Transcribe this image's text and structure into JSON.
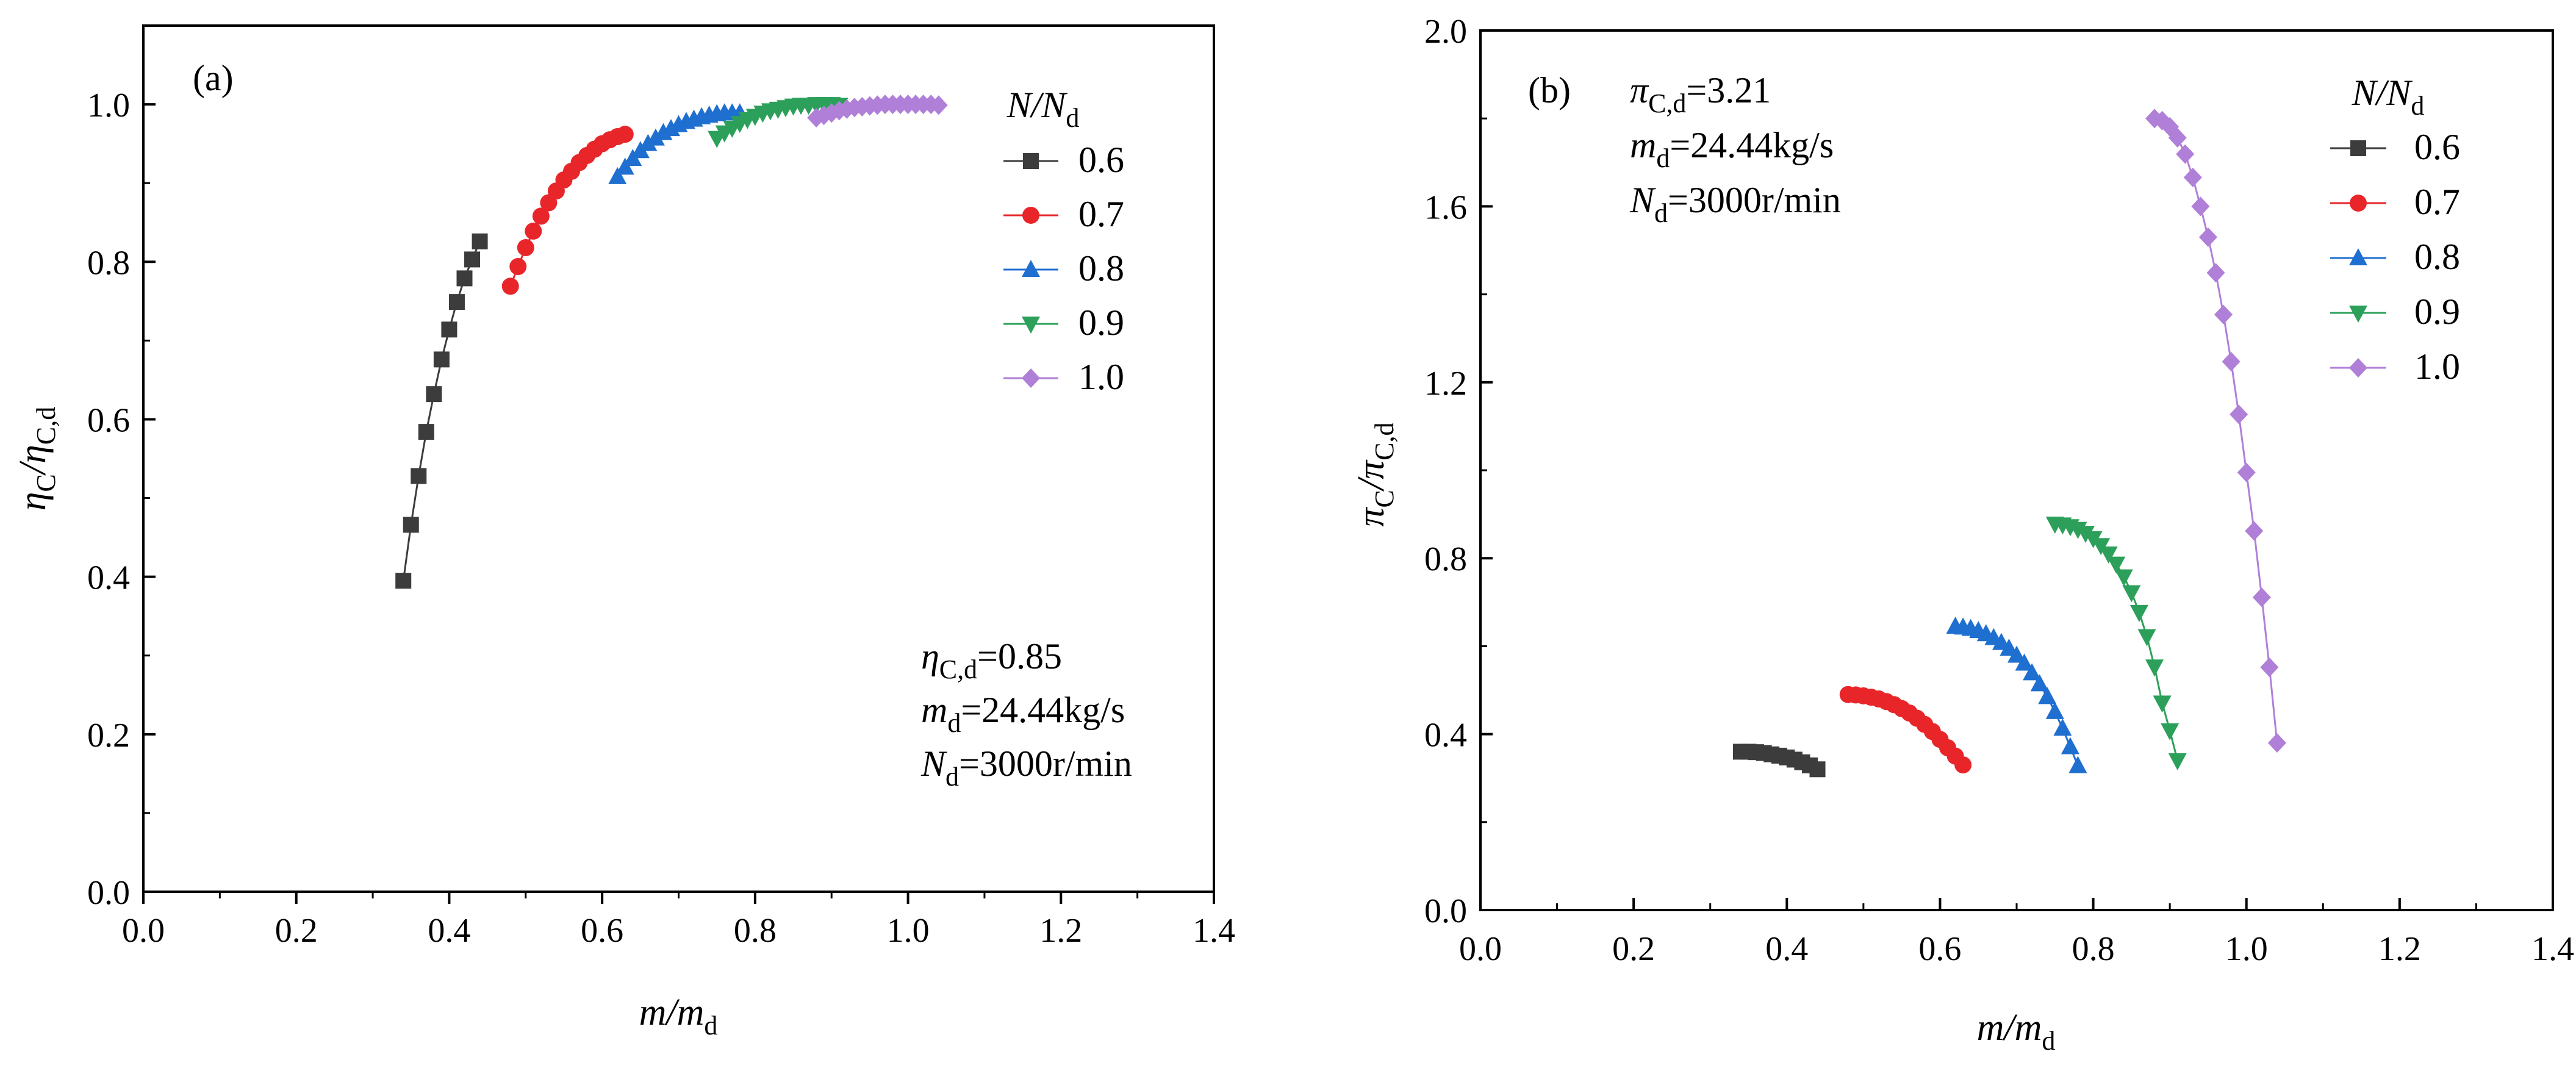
{
  "chart_data": [
    {
      "type": "line",
      "panel_label": "(a)",
      "xlabel": {
        "main": "m/m",
        "sub": "d"
      },
      "ylabel": {
        "main": "η",
        "sub1": "C",
        "mid": "/η",
        "sub2": "C,d"
      },
      "xlim": [
        0.0,
        1.4
      ],
      "ylim": [
        0.0,
        1.1
      ],
      "xticks": [
        "0.0",
        "0.2",
        "0.4",
        "0.6",
        "0.8",
        "1.0",
        "1.2",
        "1.4"
      ],
      "yticks": [
        "0.0",
        "0.2",
        "0.4",
        "0.6",
        "0.8",
        "1.0"
      ],
      "legend_title": {
        "main": "N/N",
        "sub": "d"
      },
      "annotations": [
        {
          "main": "η",
          "sub": "C,d",
          "rest": "=0.85"
        },
        {
          "main": "m",
          "sub": "d",
          "rest": "=24.44kg/s"
        },
        {
          "main": "N",
          "sub": "d",
          "rest": "=3000r/min"
        }
      ],
      "series": [
        {
          "name": "0.6",
          "color": "#3c3c3c",
          "marker": "square",
          "x": [
            0.34,
            0.35,
            0.36,
            0.37,
            0.38,
            0.39,
            0.4,
            0.41,
            0.42,
            0.43,
            0.44
          ],
          "y": [
            0.395,
            0.466,
            0.528,
            0.584,
            0.632,
            0.676,
            0.714,
            0.749,
            0.779,
            0.803,
            0.826
          ]
        },
        {
          "name": "0.7",
          "color": "#e8262a",
          "marker": "circle",
          "x": [
            0.48,
            0.49,
            0.5,
            0.51,
            0.52,
            0.53,
            0.54,
            0.55,
            0.56,
            0.57,
            0.58,
            0.59,
            0.6,
            0.61,
            0.62,
            0.63
          ],
          "y": [
            0.769,
            0.794,
            0.818,
            0.839,
            0.858,
            0.875,
            0.89,
            0.904,
            0.915,
            0.926,
            0.935,
            0.943,
            0.95,
            0.955,
            0.959,
            0.962
          ]
        },
        {
          "name": "0.8",
          "color": "#1f6fd0",
          "marker": "triangle-up",
          "x": [
            0.62,
            0.63,
            0.64,
            0.65,
            0.66,
            0.67,
            0.68,
            0.69,
            0.7,
            0.71,
            0.72,
            0.73,
            0.74,
            0.75,
            0.76,
            0.77,
            0.78
          ],
          "y": [
            0.908,
            0.92,
            0.931,
            0.941,
            0.95,
            0.957,
            0.964,
            0.969,
            0.974,
            0.978,
            0.981,
            0.984,
            0.986,
            0.988,
            0.989,
            0.989,
            0.989
          ]
        },
        {
          "name": "0.9",
          "color": "#2ca05a",
          "marker": "triangle-down",
          "x": [
            0.75,
            0.76,
            0.77,
            0.78,
            0.79,
            0.8,
            0.81,
            0.82,
            0.83,
            0.84,
            0.85,
            0.86,
            0.87,
            0.88,
            0.89,
            0.9,
            0.91
          ],
          "y": [
            0.957,
            0.964,
            0.97,
            0.976,
            0.981,
            0.985,
            0.989,
            0.992,
            0.994,
            0.996,
            0.998,
            0.999,
            0.999,
            1.0,
            1.0,
            1.0,
            0.999
          ]
        },
        {
          "name": "1.0",
          "color": "#b07fd8",
          "marker": "diamond",
          "x": [
            0.88,
            0.89,
            0.9,
            0.91,
            0.92,
            0.93,
            0.94,
            0.95,
            0.96,
            0.97,
            0.98,
            0.99,
            1.0,
            1.01,
            1.02,
            1.03,
            1.04
          ],
          "y": [
            0.983,
            0.986,
            0.989,
            0.992,
            0.994,
            0.996,
            0.997,
            0.998,
            0.999,
            1.0,
            1.0,
            1.0,
            1.0,
            1.0,
            1.0,
            1.0,
            0.999
          ]
        }
      ]
    },
    {
      "type": "line",
      "panel_label": "(b)",
      "xlabel": {
        "main": "m/m",
        "sub": "d"
      },
      "ylabel": {
        "main": "π",
        "sub1": "C",
        "mid": "/π",
        "sub2": "C,d"
      },
      "xlim": [
        0.0,
        1.4
      ],
      "ylim": [
        0.0,
        2.0
      ],
      "xticks": [
        "0.0",
        "0.2",
        "0.4",
        "0.6",
        "0.8",
        "1.0",
        "1.2",
        "1.4"
      ],
      "yticks": [
        "0.0",
        "0.4",
        "0.8",
        "1.2",
        "1.6",
        "2.0"
      ],
      "legend_title": {
        "main": "N/N",
        "sub": "d"
      },
      "annotations": [
        {
          "main": "π",
          "sub": "C,d",
          "rest": "=3.21"
        },
        {
          "main": "m",
          "sub": "d",
          "rest": "=24.44kg/s"
        },
        {
          "main": "N",
          "sub": "d",
          "rest": "=3000r/min"
        }
      ],
      "series": [
        {
          "name": "0.6",
          "color": "#3c3c3c",
          "marker": "square",
          "x": [
            0.34,
            0.35,
            0.36,
            0.37,
            0.38,
            0.39,
            0.4,
            0.41,
            0.42,
            0.43,
            0.44
          ],
          "y": [
            0.36,
            0.36,
            0.359,
            0.357,
            0.354,
            0.351,
            0.347,
            0.342,
            0.336,
            0.329,
            0.32
          ]
        },
        {
          "name": "0.7",
          "color": "#e8262a",
          "marker": "circle",
          "x": [
            0.48,
            0.49,
            0.5,
            0.51,
            0.52,
            0.53,
            0.54,
            0.55,
            0.56,
            0.57,
            0.58,
            0.59,
            0.6,
            0.61,
            0.62,
            0.63
          ],
          "y": [
            0.49,
            0.489,
            0.487,
            0.484,
            0.48,
            0.474,
            0.467,
            0.458,
            0.448,
            0.436,
            0.422,
            0.406,
            0.388,
            0.369,
            0.35,
            0.33
          ]
        },
        {
          "name": "0.8",
          "color": "#1f6fd0",
          "marker": "triangle-up",
          "x": [
            0.62,
            0.63,
            0.64,
            0.65,
            0.66,
            0.67,
            0.68,
            0.69,
            0.7,
            0.71,
            0.72,
            0.73,
            0.74,
            0.75,
            0.76,
            0.77,
            0.78
          ],
          "y": [
            0.645,
            0.643,
            0.64,
            0.635,
            0.628,
            0.619,
            0.608,
            0.595,
            0.579,
            0.561,
            0.539,
            0.514,
            0.485,
            0.451,
            0.413,
            0.371,
            0.328
          ]
        },
        {
          "name": "0.9",
          "color": "#2ca05a",
          "marker": "triangle-down",
          "x": [
            0.75,
            0.76,
            0.77,
            0.78,
            0.79,
            0.8,
            0.81,
            0.82,
            0.83,
            0.84,
            0.85,
            0.86,
            0.87,
            0.88,
            0.89,
            0.9,
            0.91
          ],
          "y": [
            0.878,
            0.876,
            0.872,
            0.866,
            0.857,
            0.845,
            0.829,
            0.81,
            0.787,
            0.758,
            0.722,
            0.677,
            0.622,
            0.553,
            0.471,
            0.408,
            0.34
          ]
        },
        {
          "name": "1.0",
          "color": "#b07fd8",
          "marker": "diamond",
          "x": [
            0.88,
            0.89,
            0.9,
            0.91,
            0.92,
            0.93,
            0.94,
            0.95,
            0.96,
            0.97,
            0.98,
            0.99,
            1.0,
            1.01,
            1.02,
            1.03,
            1.04
          ],
          "y": [
            1.8,
            1.795,
            1.781,
            1.756,
            1.719,
            1.666,
            1.6,
            1.53,
            1.449,
            1.354,
            1.247,
            1.127,
            0.995,
            0.862,
            0.711,
            0.552,
            0.38
          ]
        }
      ]
    }
  ]
}
